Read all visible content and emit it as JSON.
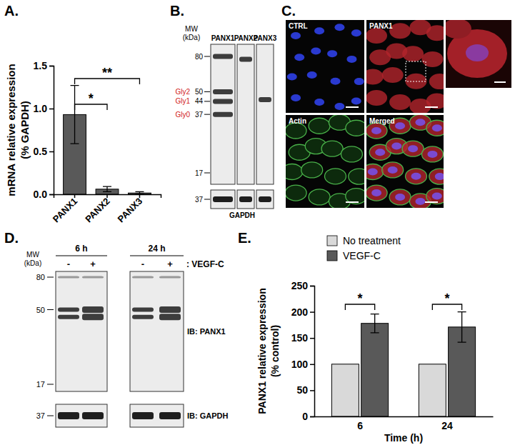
{
  "chart_data": [
    {
      "label": "A.",
      "type": "bar",
      "y_label": [
        "mRNA relative expression",
        "(% GAPDH)"
      ],
      "categories": [
        "PANX1",
        "PANX2",
        "PANX3"
      ],
      "values": [
        0.93,
        0.06,
        0.015
      ],
      "errors": [
        0.34,
        0.03,
        0.015
      ],
      "color": "#595959",
      "ylim": [
        0,
        1.5
      ],
      "yticks": [
        {
          "value": 0,
          "label": "0.0"
        },
        0.5,
        {
          "value": 1,
          "label": "1.0"
        },
        1.5
      ],
      "annotations": [
        {
          "text": "*",
          "from": 0,
          "to": 1
        },
        {
          "text": "**",
          "from": 0,
          "to": 2
        }
      ]
    },
    {
      "label": "E.",
      "type": "bar",
      "y_label": [
        "PANX1 relative expression",
        "(% control)"
      ],
      "x_label": "Time (h)",
      "categories": [
        "6",
        "24"
      ],
      "series": [
        {
          "name": "No treatment",
          "color": "#d9d9d9",
          "values": [
            100,
            100
          ]
        },
        {
          "name": "VEGF-C",
          "color": "#595959",
          "values": [
            178,
            171
          ],
          "errors": [
            18,
            29
          ]
        }
      ],
      "ylim": [
        0,
        250
      ],
      "yticks": [
        0,
        50,
        100,
        150,
        200,
        250
      ],
      "legend": "top",
      "annotations": [
        {
          "text": "*",
          "category": 0
        },
        {
          "text": "*",
          "category": 1
        }
      ]
    }
  ],
  "blot_b": {
    "label": "B.",
    "mw_title": [
      "MW",
      "(kDa)"
    ],
    "lanes": [
      "PANX1",
      "PANX2",
      "PANX3"
    ],
    "markers": [
      80,
      50,
      44,
      37,
      17
    ],
    "marker_names": [
      null,
      "Gly2",
      "Gly1",
      "Gly0",
      null
    ],
    "bands": [
      [
        80,
        50,
        44,
        37
      ],
      [
        77
      ],
      [
        45
      ]
    ],
    "loading": "GAPDH",
    "loading_marker": 37
  },
  "images_c": {
    "label": "C.",
    "panels": [
      "CTRL",
      "PANX1",
      "Actin",
      "Merged"
    ]
  },
  "blot_d": {
    "label": "D.",
    "mw_title": [
      "MW",
      "(kDa)"
    ],
    "times": [
      "6 h",
      "24 h"
    ],
    "signs": [
      "-",
      "+"
    ],
    "treatment": ": VEGF-C",
    "markers": [
      80,
      50,
      17
    ],
    "bands": [
      80,
      50,
      45
    ],
    "probes": [
      "IB: PANX1",
      "IB: GAPDH"
    ],
    "loading_marker": 37
  }
}
